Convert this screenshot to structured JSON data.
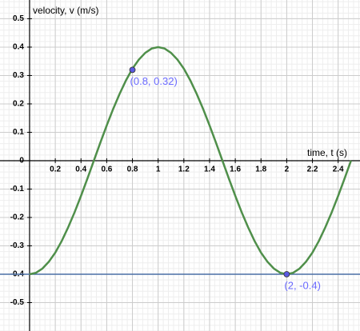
{
  "chart_data": {
    "type": "line",
    "y_axis_label": "velocity, v (m/s)",
    "x_axis_label": "time, t (s)",
    "xlim": [
      -0.23,
      2.57
    ],
    "ylim": [
      -0.6,
      0.566
    ],
    "xticks": [
      0.2,
      0.4,
      0.6,
      0.8,
      1,
      1.2,
      1.4,
      1.6,
      1.8,
      2,
      2.2,
      2.4
    ],
    "yticks": [
      -0.5,
      -0.4,
      -0.3,
      -0.2,
      -0.1,
      0,
      0.1,
      0.2,
      0.3,
      0.4,
      0.5
    ],
    "grid": true,
    "minor_grid": {
      "x": 0.04,
      "y": 0.02
    },
    "x": [
      0,
      0.05,
      0.1,
      0.15,
      0.2,
      0.25,
      0.3,
      0.35,
      0.4,
      0.45,
      0.5,
      0.55,
      0.6,
      0.65,
      0.7,
      0.75,
      0.8,
      0.85,
      0.9,
      0.95,
      1,
      1.05,
      1.1,
      1.15,
      1.2,
      1.25,
      1.3,
      1.35,
      1.4,
      1.45,
      1.5,
      1.55,
      1.6,
      1.65,
      1.7,
      1.75,
      1.8,
      1.85,
      1.9,
      1.95,
      2,
      2.05,
      2.1,
      2.15,
      2.2,
      2.25,
      2.3,
      2.35,
      2.4,
      2.45,
      2.5
    ],
    "series": [
      {
        "color": "#4f8f4a",
        "values": [
          -0.4,
          -0.395,
          -0.38,
          -0.356,
          -0.324,
          -0.283,
          -0.235,
          -0.182,
          -0.124,
          -0.063,
          0,
          0.063,
          0.124,
          0.182,
          0.235,
          0.283,
          0.324,
          0.356,
          0.38,
          0.395,
          0.4,
          0.395,
          0.38,
          0.356,
          0.324,
          0.283,
          0.235,
          0.182,
          0.124,
          0.063,
          0,
          -0.063,
          -0.124,
          -0.182,
          -0.235,
          -0.283,
          -0.324,
          -0.356,
          -0.38,
          -0.395,
          -0.4,
          -0.395,
          -0.38,
          -0.356,
          -0.324,
          -0.283,
          -0.235,
          -0.182,
          -0.124,
          -0.063,
          0
        ]
      }
    ],
    "hline": {
      "y": -0.4,
      "color": "#4a6fa5"
    },
    "points": [
      {
        "x": 0.8,
        "y": 0.32,
        "label": "(0.8, 0.32)",
        "color": "#5a5ae0"
      },
      {
        "x": 2,
        "y": -0.4,
        "label": "(2, -0.4)",
        "color": "#5a5ae0"
      }
    ]
  }
}
